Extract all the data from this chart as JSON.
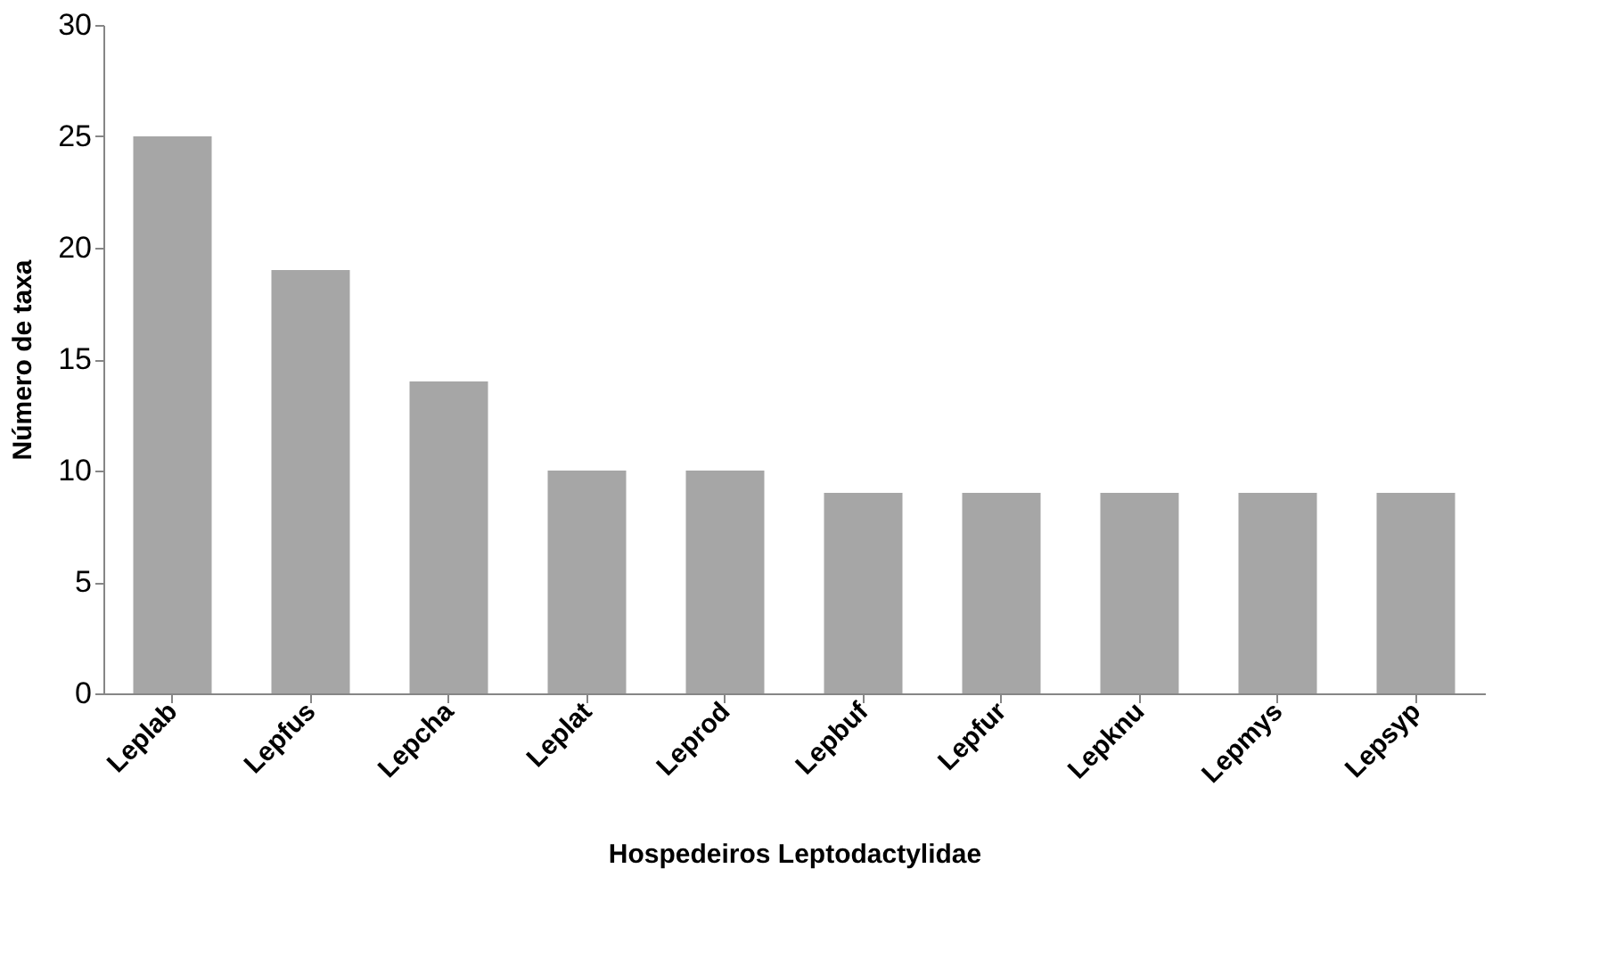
{
  "chart_data": {
    "type": "bar",
    "xlabel": "Hospedeiros Leptodactylidae",
    "ylabel": "Número de taxa",
    "categories": [
      "Leplab",
      "Lepfus",
      "Lepcha",
      "Leplat",
      "Leprod",
      "Lepbuf",
      "Lepfur",
      "Lepknu",
      "Lepmys",
      "Lepsyp"
    ],
    "values": [
      25,
      19,
      14,
      10,
      10,
      9,
      9,
      9,
      9,
      9
    ],
    "color": "#a6a6a6",
    "ylim": [
      0,
      30
    ],
    "yticks": [
      0,
      5,
      10,
      15,
      20,
      25,
      30
    ],
    "grid": false
  }
}
